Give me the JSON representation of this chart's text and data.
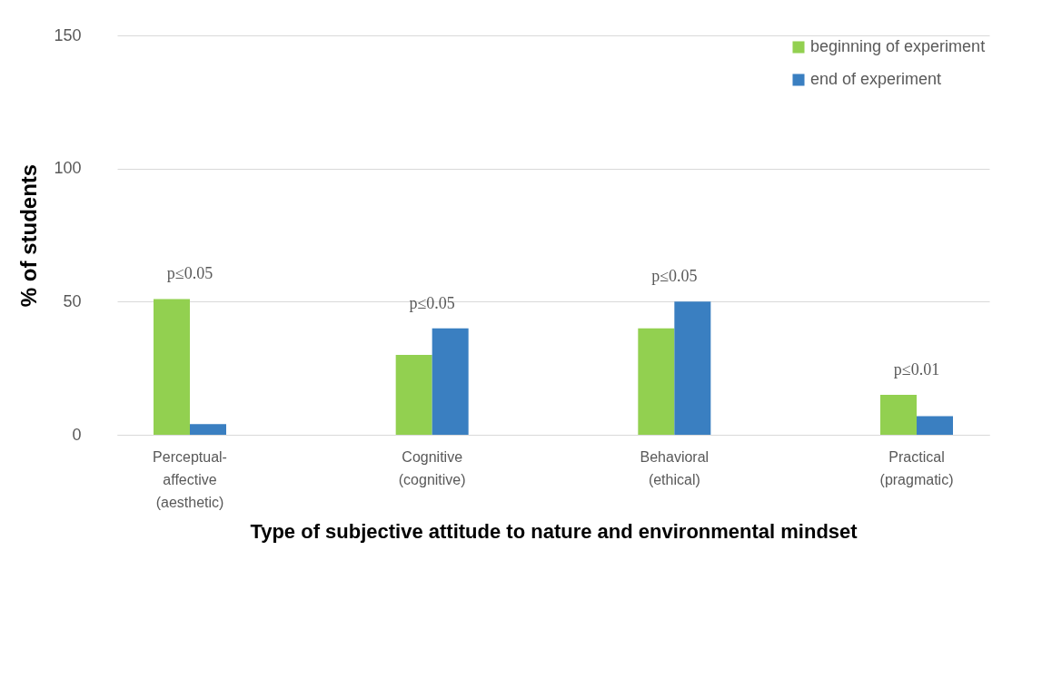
{
  "chart_data": {
    "type": "bar",
    "xlabel": "Type of subjective attitude to nature and environmental mindset",
    "ylabel": "% of students",
    "categories": [
      "Perceptual-affective (aesthetic)",
      "Cognitive (cognitive)",
      "Behavioral (ethical)",
      "Practical (pragmatic)"
    ],
    "series": [
      {
        "name": "beginning of experiment",
        "color": "#92d050",
        "values": [
          51,
          30,
          40,
          15
        ]
      },
      {
        "name": "end of experiment",
        "color": "#3a7fc1",
        "values": [
          4,
          40,
          50,
          7
        ]
      }
    ],
    "ylim": [
      0,
      150
    ],
    "yticks": [
      0,
      50,
      100,
      150
    ],
    "grid": "y",
    "legend": "top right",
    "annotations": [
      {
        "text": "p≤0.05",
        "x": "Perceptual-affective (aesthetic)",
        "y": 51
      },
      {
        "text": "p≤0.05",
        "x": "Cognitive (cognitive)",
        "y": 40
      },
      {
        "text": "p≤0.05",
        "x": "Behavioral (ethical)",
        "y": 50
      },
      {
        "text": "p≤0.01",
        "x": "Practical (pragmatic)",
        "y": 15
      }
    ]
  }
}
